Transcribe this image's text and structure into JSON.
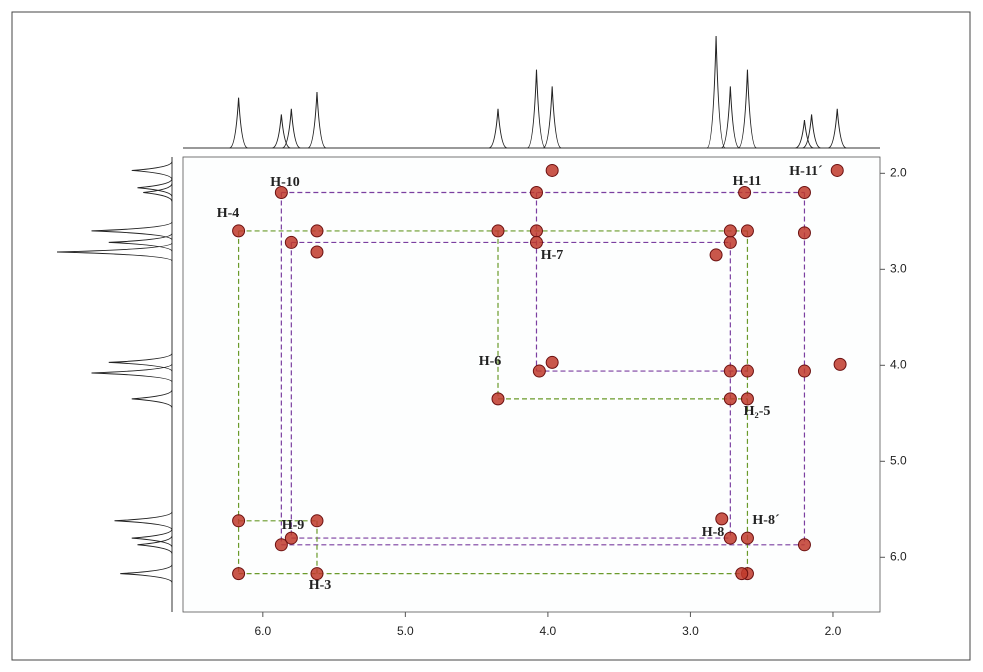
{
  "chart_data": {
    "type": "scatter",
    "xlim": [
      6.56,
      1.67
    ],
    "ylim": [
      1.83,
      6.57
    ],
    "xticks": [
      {
        "value": 6,
        "label": "6.0"
      },
      {
        "value": 5,
        "label": "5.0"
      },
      {
        "value": 4,
        "label": "4.0"
      },
      {
        "value": 3,
        "label": "3.0"
      },
      {
        "value": 2,
        "label": "2.0"
      }
    ],
    "yticks": [
      {
        "value": 2,
        "label": "2.0"
      },
      {
        "value": 3,
        "label": "3.0"
      },
      {
        "value": 4,
        "label": "4.0"
      },
      {
        "value": 5,
        "label": "5.0"
      },
      {
        "value": 6,
        "label": "6.0"
      }
    ],
    "peak_color": "#c0392b",
    "x": [
      6.17,
      5.87,
      5.8,
      5.62,
      4.35,
      4.06,
      3.97,
      2.72,
      2.6,
      2.2,
      1.97,
      6.17,
      6.17,
      5.87,
      5.8,
      5.62,
      5.62,
      5.62,
      4.35,
      4.08,
      4.08,
      4.08,
      3.97,
      2.72,
      2.62,
      2.2,
      2.2,
      2.72,
      2.6,
      2.6,
      2.72,
      2.6,
      2.72,
      2.6,
      2.64,
      2.82,
      2.2,
      1.95,
      2.78
    ],
    "y": [
      6.17,
      5.87,
      5.8,
      5.62,
      4.35,
      4.06,
      3.97,
      2.72,
      2.6,
      2.2,
      1.97,
      2.6,
      5.62,
      2.2,
      2.72,
      2.6,
      2.82,
      6.17,
      2.6,
      2.6,
      2.72,
      2.2,
      1.97,
      2.6,
      2.2,
      2.62,
      5.87,
      4.06,
      4.06,
      4.35,
      4.35,
      5.8,
      5.8,
      6.17,
      6.17,
      2.85,
      4.06,
      3.99,
      5.6
    ],
    "correlations": [
      {
        "color": "#7b3fa0",
        "lines": [
          [
            5.87,
            2.2,
            2.2,
            2.2
          ],
          [
            5.87,
            2.2,
            5.87,
            5.87
          ],
          [
            5.87,
            5.87,
            2.2,
            5.87
          ],
          [
            2.2,
            2.2,
            2.2,
            5.87
          ],
          [
            5.8,
            2.72,
            5.8,
            5.8
          ],
          [
            5.8,
            2.72,
            2.72,
            2.72
          ],
          [
            5.8,
            5.8,
            2.72,
            5.8
          ],
          [
            2.72,
            2.72,
            2.72,
            5.8
          ],
          [
            4.08,
            2.2,
            4.08,
            4.06
          ],
          [
            4.08,
            4.06,
            2.6,
            4.06
          ]
        ]
      },
      {
        "color": "#6a9a2a",
        "lines": [
          [
            6.17,
            2.6,
            2.6,
            2.6
          ],
          [
            6.17,
            2.6,
            6.17,
            6.17
          ],
          [
            6.17,
            6.17,
            2.6,
            6.17
          ],
          [
            2.6,
            2.6,
            2.6,
            6.17
          ],
          [
            5.62,
            5.62,
            5.62,
            6.17
          ],
          [
            6.17,
            5.62,
            5.62,
            5.62
          ],
          [
            4.35,
            2.6,
            4.35,
            4.35
          ],
          [
            4.35,
            4.35,
            2.6,
            4.35
          ]
        ]
      }
    ],
    "spectrum": {
      "ppm": [
        6.17,
        5.87,
        5.8,
        5.62,
        4.35,
        4.08,
        3.97,
        2.82,
        2.72,
        2.6,
        2.2,
        2.15,
        1.97
      ],
      "height": [
        0.45,
        0.3,
        0.35,
        0.5,
        0.35,
        0.7,
        0.55,
        1.0,
        0.55,
        0.7,
        0.25,
        0.3,
        0.35
      ]
    },
    "annotations": [
      "H-10",
      "H-4",
      "H-11",
      "H-11´",
      "H-7",
      "H-6",
      "H₂-5",
      "H-9",
      "H-8",
      "H-8´",
      "H-3"
    ]
  }
}
